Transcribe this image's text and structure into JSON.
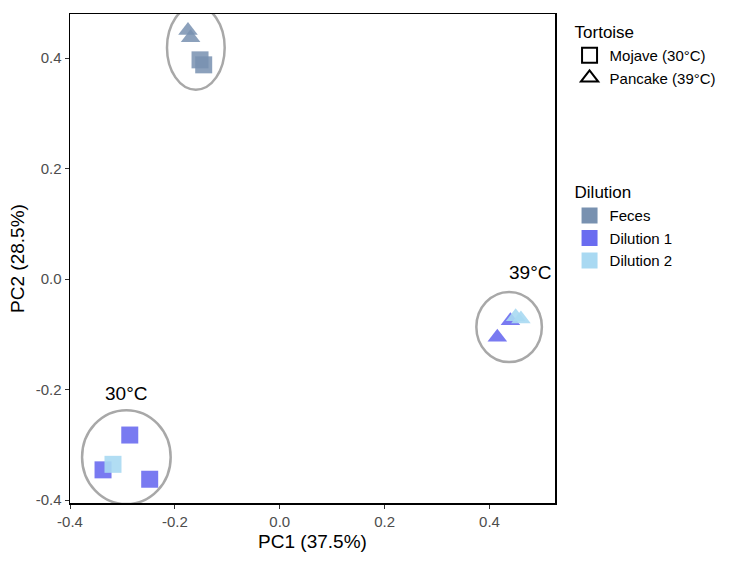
{
  "chart_data": {
    "type": "scatter",
    "xlabel": "PC1 (37.5%)",
    "ylabel": "PC2 (28.5%)",
    "xlim": [
      -0.4,
      0.525
    ],
    "ylim": [
      -0.405,
      0.48
    ],
    "xticks": [
      -0.4,
      -0.2,
      {
        "value": 0,
        "label": "0.0"
      },
      0.2,
      0.4
    ],
    "yticks": [
      -0.4,
      -0.2,
      {
        "value": 0,
        "label": "0.0"
      },
      0.2,
      0.4
    ],
    "grid": false,
    "legend": "right",
    "shape_legend": {
      "title": "Tortoise",
      "items": [
        {
          "name": "Mojave (30°C)",
          "marker": "square"
        },
        {
          "name": "Pancake (39°C)",
          "marker": "triangle"
        }
      ]
    },
    "color_legend": {
      "title": "Dilution",
      "items": [
        {
          "name": "Feces",
          "color": "#7891b0"
        },
        {
          "name": "Dilution 1",
          "color": "#6a6cf0"
        },
        {
          "name": "Dilution 2",
          "color": "#a9d9f2"
        }
      ]
    },
    "points": [
      {
        "x": -0.175,
        "y": 0.45,
        "tortoise": "Pancake (39°C)",
        "dilution": "Feces"
      },
      {
        "x": -0.17,
        "y": 0.437,
        "tortoise": "Pancake (39°C)",
        "dilution": "Feces"
      },
      {
        "x": -0.152,
        "y": 0.397,
        "tortoise": "Mojave (30°C)",
        "dilution": "Feces"
      },
      {
        "x": -0.145,
        "y": 0.388,
        "tortoise": "Mojave (30°C)",
        "dilution": "Feces"
      },
      {
        "x": 0.415,
        "y": -0.105,
        "tortoise": "Pancake (39°C)",
        "dilution": "Dilution 1"
      },
      {
        "x": 0.44,
        "y": -0.075,
        "tortoise": "Pancake (39°C)",
        "dilution": "Dilution 1"
      },
      {
        "x": 0.45,
        "y": -0.068,
        "tortoise": "Pancake (39°C)",
        "dilution": "Dilution 2"
      },
      {
        "x": 0.46,
        "y": -0.072,
        "tortoise": "Pancake (39°C)",
        "dilution": "Dilution 2"
      },
      {
        "x": -0.286,
        "y": -0.282,
        "tortoise": "Mojave (30°C)",
        "dilution": "Dilution 1"
      },
      {
        "x": -0.248,
        "y": -0.362,
        "tortoise": "Mojave (30°C)",
        "dilution": "Dilution 1"
      },
      {
        "x": -0.337,
        "y": -0.345,
        "tortoise": "Mojave (30°C)",
        "dilution": "Dilution 1"
      },
      {
        "x": -0.318,
        "y": -0.335,
        "tortoise": "Mojave (30°C)",
        "dilution": "Dilution 2"
      }
    ],
    "annotations": [
      {
        "text": "30°C",
        "x": -0.294,
        "y": -0.207
      },
      {
        "text": "39°C",
        "x": 0.478,
        "y": 0.013
      }
    ]
  }
}
